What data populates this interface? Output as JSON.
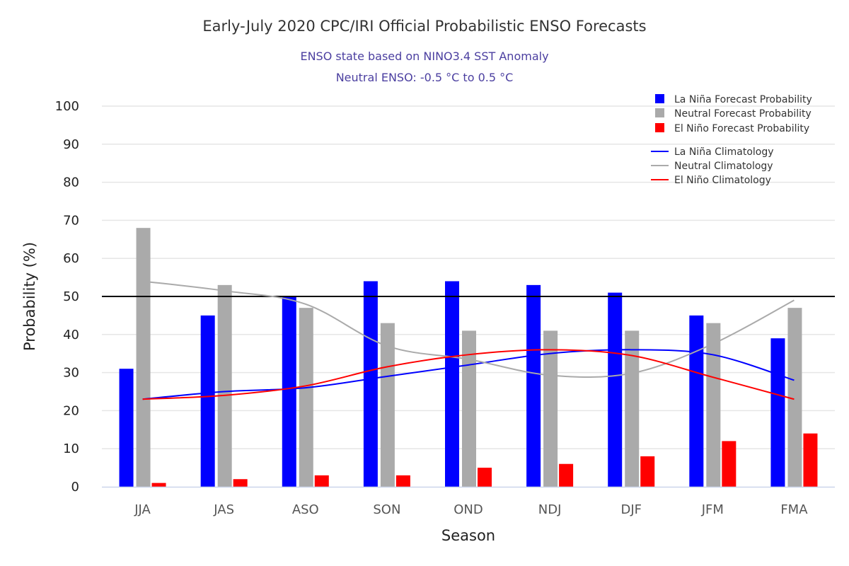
{
  "chart_data": {
    "type": "bar",
    "title": "Early-July 2020 CPC/IRI Official Probabilistic ENSO Forecasts",
    "subtitle": [
      "ENSO state based on NINO3.4 SST Anomaly",
      "Neutral ENSO: -0.5 °C to 0.5 °C"
    ],
    "xlabel": "Season",
    "ylabel": "Probability (%)",
    "ylim": [
      0,
      100
    ],
    "yticks": [
      0,
      10,
      20,
      30,
      40,
      50,
      60,
      70,
      80,
      90,
      100
    ],
    "reference_line": 50,
    "grid": true,
    "legend_position": "top-right",
    "categories": [
      "JJA",
      "JAS",
      "ASO",
      "SON",
      "OND",
      "NDJ",
      "DJF",
      "JFM",
      "FMA"
    ],
    "series": [
      {
        "name": "La Niña Forecast Probability",
        "kind": "bar",
        "color": "#0000ff",
        "values": [
          31,
          45,
          50,
          54,
          54,
          53,
          51,
          45,
          39
        ]
      },
      {
        "name": "Neutral Forecast Probability",
        "kind": "bar",
        "color": "#aaaaaa",
        "values": [
          68,
          53,
          47,
          43,
          41,
          41,
          41,
          43,
          47
        ]
      },
      {
        "name": "El Niño Forecast Probability",
        "kind": "bar",
        "color": "#ff0000",
        "values": [
          1,
          2,
          3,
          3,
          5,
          6,
          8,
          12,
          14
        ]
      },
      {
        "name": "La Niña Climatology",
        "kind": "line",
        "color": "#0000ff",
        "values": [
          23,
          25,
          26,
          29,
          32,
          35,
          36,
          34.7,
          28
        ]
      },
      {
        "name": "Neutral Climatology",
        "kind": "line",
        "color": "#aaaaaa",
        "values": [
          54,
          51.5,
          48,
          37,
          33.5,
          29.3,
          29.8,
          37.5,
          49
        ]
      },
      {
        "name": "El Niño Climatology",
        "kind": "line",
        "color": "#ff0000",
        "values": [
          23,
          24,
          26.5,
          31.5,
          34.7,
          36,
          34.5,
          28.8,
          23
        ]
      }
    ]
  }
}
